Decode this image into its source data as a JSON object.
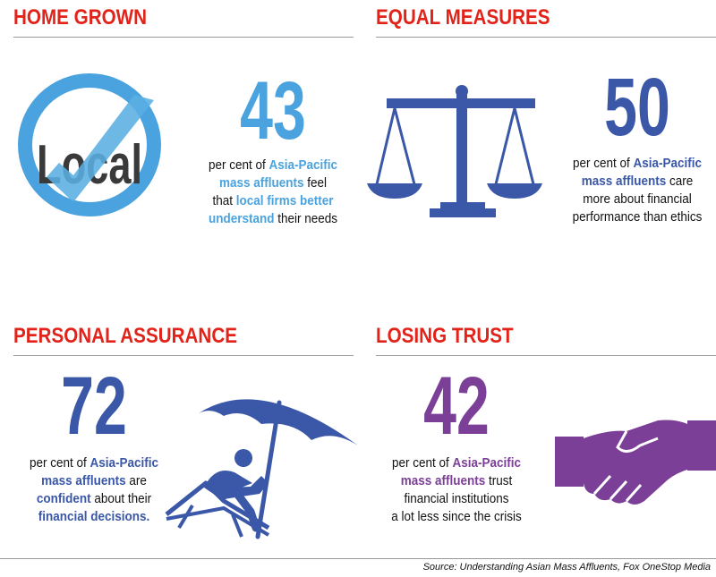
{
  "panels": [
    {
      "title": "HOME GROWN",
      "color": "#4aa3df",
      "number": 43,
      "icon_text": "Local",
      "lines": [
        [
          {
            "text": "per cent of ",
            "highlight": false
          },
          {
            "text": "Asia-Pacific",
            "highlight": true
          }
        ],
        [
          {
            "text": "mass affluents",
            "highlight": true
          },
          {
            "text": " feel",
            "highlight": false
          }
        ],
        [
          {
            "text": "that ",
            "highlight": false
          },
          {
            "text": "local firms better",
            "highlight": true
          }
        ],
        [
          {
            "text": "understand",
            "highlight": true
          },
          {
            "text": " their needs",
            "highlight": false
          }
        ]
      ]
    },
    {
      "title": "EQUAL MEASURES",
      "color": "#3a57a8",
      "number": 50,
      "lines": [
        [
          {
            "text": "per cent of ",
            "highlight": false
          },
          {
            "text": "Asia-Pacific",
            "highlight": true
          }
        ],
        [
          {
            "text": "mass affluents",
            "highlight": true
          },
          {
            "text": " care",
            "highlight": false
          }
        ],
        [
          {
            "text": "more about financial",
            "highlight": false
          }
        ],
        [
          {
            "text": "performance than ethics",
            "highlight": false
          }
        ]
      ]
    },
    {
      "title": "PERSONAL ASSURANCE",
      "color": "#3a57a8",
      "number": 72,
      "lines": [
        [
          {
            "text": "per cent of ",
            "highlight": false
          },
          {
            "text": "Asia-Pacific",
            "highlight": true
          }
        ],
        [
          {
            "text": "mass affluents",
            "highlight": true
          },
          {
            "text": " are",
            "highlight": false
          }
        ],
        [
          {
            "text": "confident",
            "highlight": true
          },
          {
            "text": " about their",
            "highlight": false
          }
        ],
        [
          {
            "text": "financial decisions.",
            "highlight": true
          }
        ]
      ]
    },
    {
      "title": "LOSING TRUST",
      "color": "#7b3f98",
      "number": 42,
      "lines": [
        [
          {
            "text": "per cent of ",
            "highlight": false
          },
          {
            "text": "Asia-Pacific",
            "highlight": true
          }
        ],
        [
          {
            "text": "mass affluents",
            "highlight": true
          },
          {
            "text": " trust",
            "highlight": false
          }
        ],
        [
          {
            "text": "financial institutions",
            "highlight": false
          }
        ],
        [
          {
            "text": "a lot less since the crisis",
            "highlight": false
          }
        ]
      ]
    }
  ],
  "source": "Source: Understanding Asian Mass Affluents, Fox OneStop Media"
}
